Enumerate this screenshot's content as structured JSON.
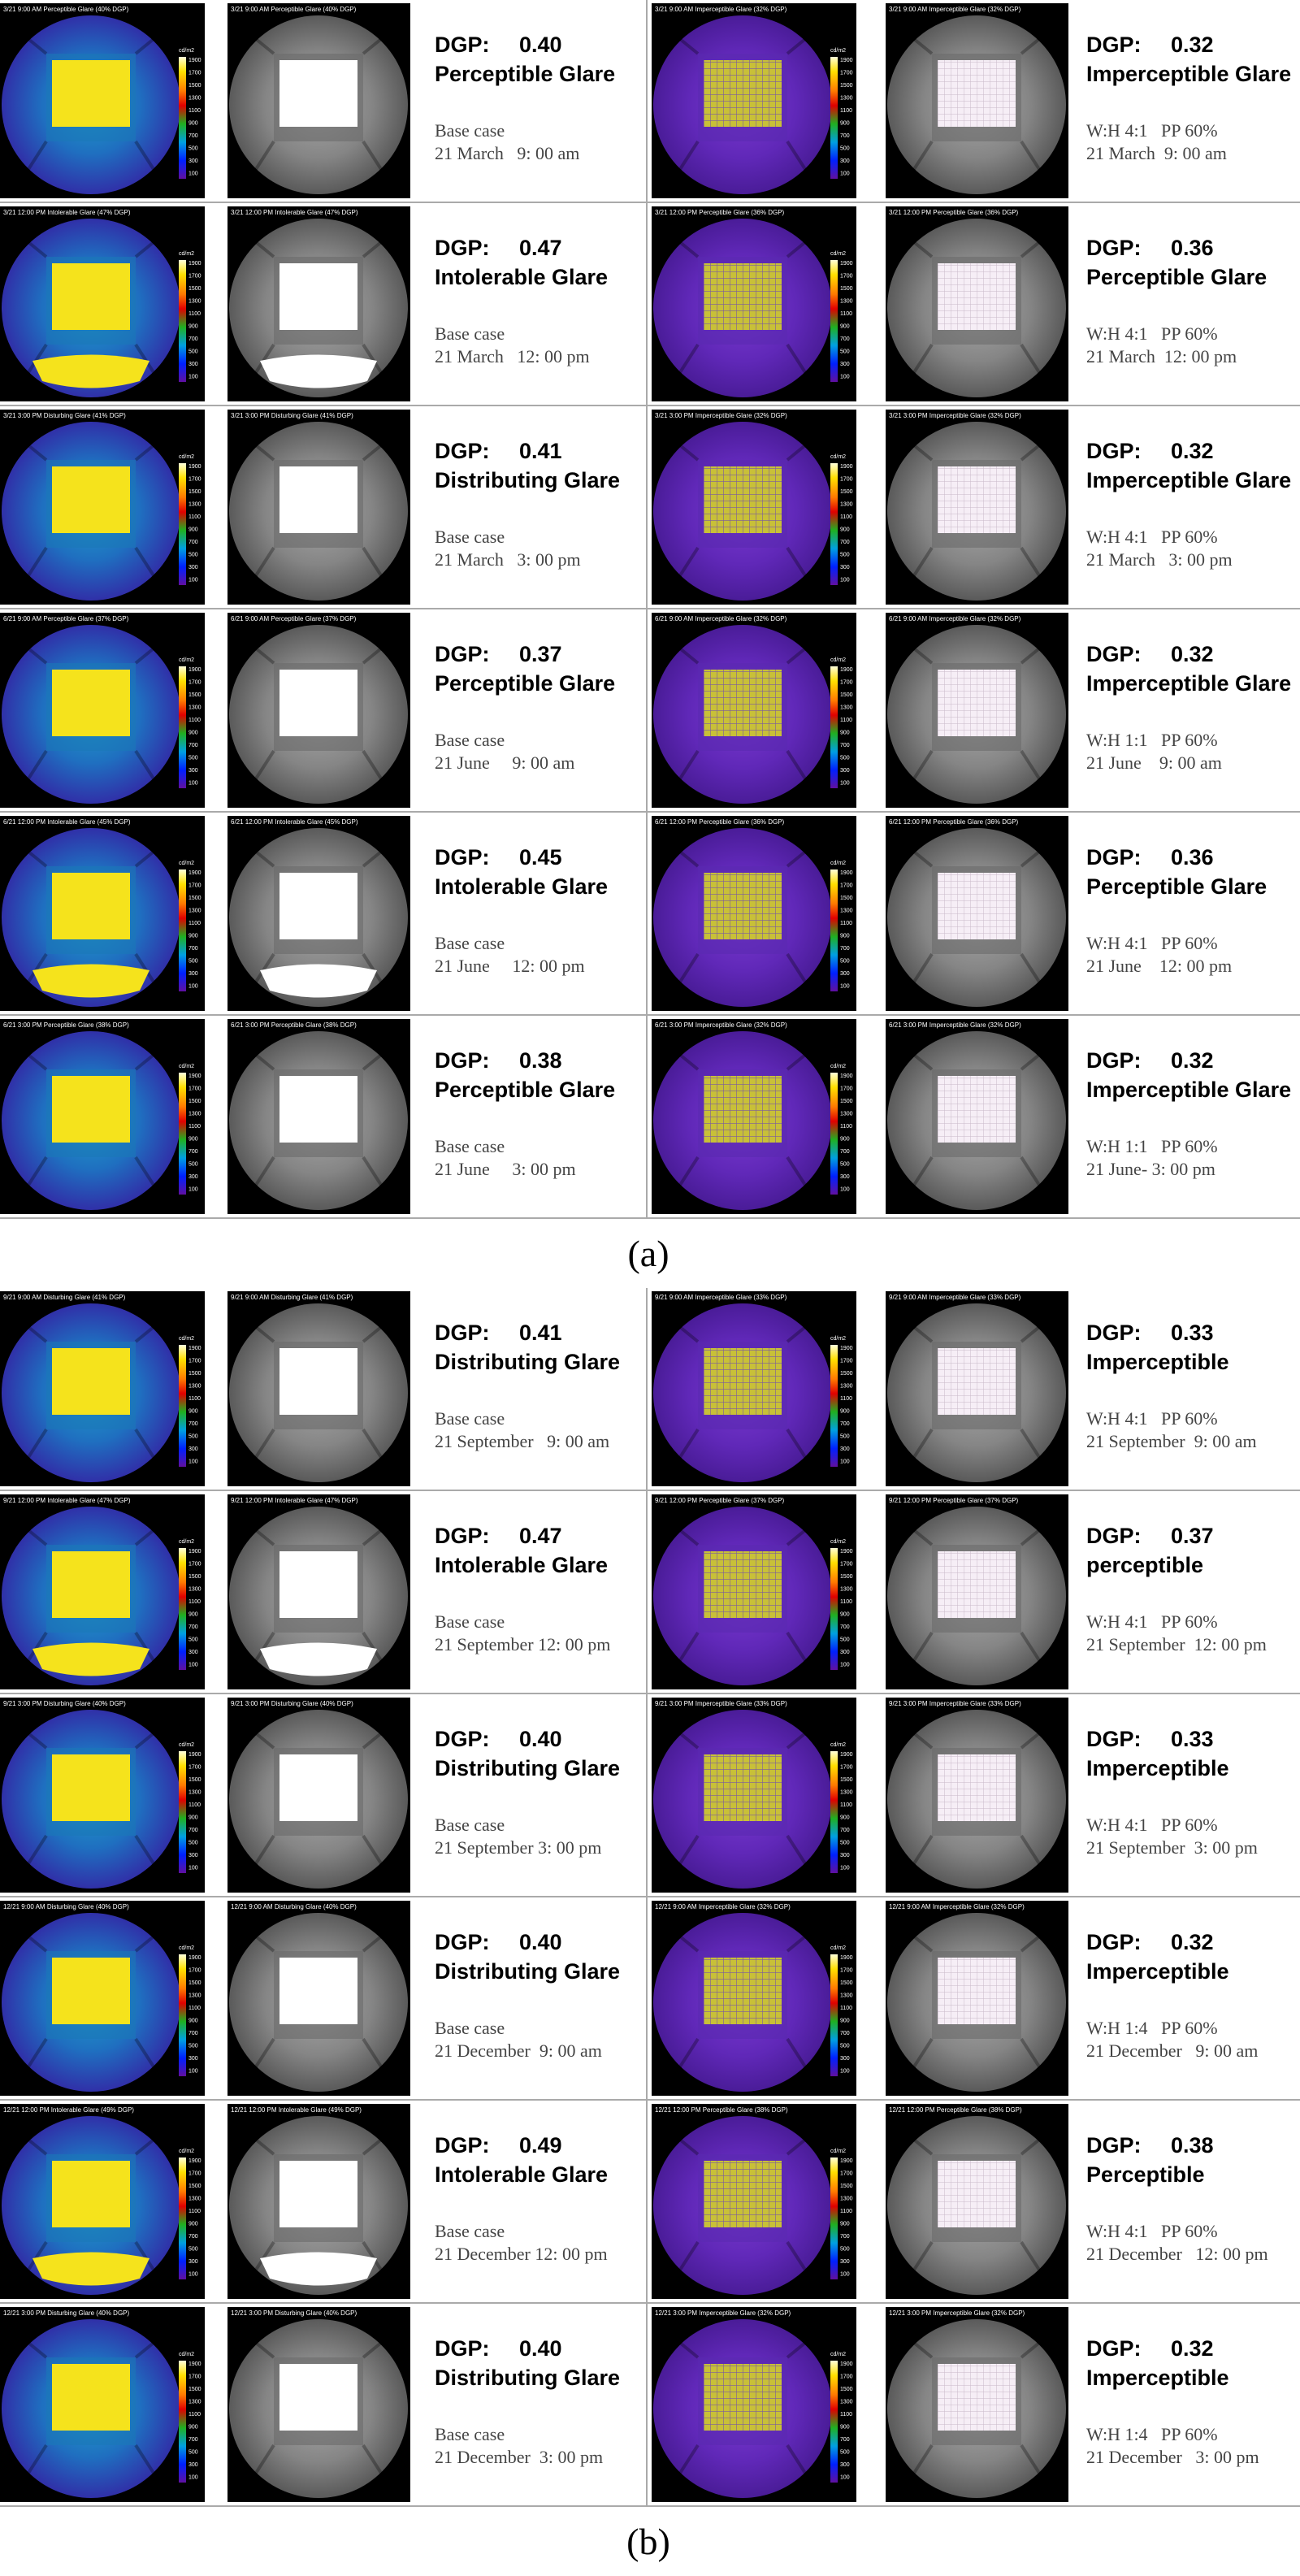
{
  "dgp_label": "DGP:",
  "legend": {
    "unit": "cd/m2",
    "labels": [
      "1900",
      "1700",
      "1500",
      "1300",
      "1100",
      "900",
      "700",
      "500",
      "300",
      "100"
    ]
  },
  "panels": [
    {
      "label": "(a)",
      "rows": [
        {
          "left": {
            "header": "3/21 9:00 AM Perceptible Glare (40% DGP)",
            "dgp": "0.40",
            "glare": "Perceptible Glare",
            "case": "Base case",
            "date": "21 March   9: 00 am"
          },
          "right": {
            "header": "3/21 9:00 AM Imperceptible Glare (32% DGP)",
            "dgp": "0.32",
            "glare": "Imperceptible Glare",
            "case": "W:H 4:1   PP 60%",
            "date": "21 March  9: 00 am"
          }
        },
        {
          "left": {
            "header": "3/21 12:00 PM Intolerable Glare (47% DGP)",
            "dgp": "0.47",
            "glare": "Intolerable Glare",
            "case": "Base case",
            "date": "21 March   12: 00 pm"
          },
          "right": {
            "header": "3/21 12:00 PM Perceptible Glare (36% DGP)",
            "dgp": "0.36",
            "glare": "Perceptible Glare",
            "case": "W:H 4:1   PP 60%",
            "date": "21 March  12: 00 pm"
          }
        },
        {
          "left": {
            "header": "3/21 3:00 PM Disturbing Glare (41% DGP)",
            "dgp": "0.41",
            "glare": "Distributing Glare",
            "case": "Base case",
            "date": "21 March   3: 00 pm"
          },
          "right": {
            "header": "3/21 3:00 PM Imperceptible Glare (32% DGP)",
            "dgp": "0.32",
            "glare": "Imperceptible Glare",
            "case": "W:H 4:1   PP 60%",
            "date": "21 March   3: 00 pm"
          }
        },
        {
          "left": {
            "header": "6/21 9:00 AM Perceptible Glare (37% DGP)",
            "dgp": "0.37",
            "glare": "Perceptible Glare",
            "case": "Base case",
            "date": "21 June     9: 00 am"
          },
          "right": {
            "header": "6/21 9:00 AM Imperceptible Glare (32% DGP)",
            "dgp": "0.32",
            "glare": "Imperceptible Glare",
            "case": "W:H 1:1   PP 60%",
            "date": "21 June    9: 00 am"
          }
        },
        {
          "left": {
            "header": "6/21 12:00 PM Intolerable Glare (45% DGP)",
            "dgp": "0.45",
            "glare": "Intolerable Glare",
            "case": "Base case",
            "date": "21 June     12: 00 pm"
          },
          "right": {
            "header": "6/21 12:00 PM Perceptible Glare (36% DGP)",
            "dgp": "0.36",
            "glare": "Perceptible Glare",
            "case": "W:H 4:1   PP 60%",
            "date": "21 June    12: 00 pm"
          }
        },
        {
          "left": {
            "header": "6/21 3:00 PM Perceptible Glare (38% DGP)",
            "dgp": "0.38",
            "glare": "Perceptible Glare",
            "case": "Base case",
            "date": "21 June     3: 00 pm"
          },
          "right": {
            "header": "6/21 3:00 PM Imperceptible Glare (32% DGP)",
            "dgp": "0.32",
            "glare": "Imperceptible Glare",
            "case": "W:H 1:1   PP 60%",
            "date": "21 June- 3: 00 pm"
          }
        }
      ]
    },
    {
      "label": "(b)",
      "rows": [
        {
          "left": {
            "header": "9/21 9:00 AM Disturbing Glare (41% DGP)",
            "dgp": "0.41",
            "glare": "Distributing Glare",
            "case": "Base case",
            "date": "21 September   9: 00 am"
          },
          "right": {
            "header": "9/21 9:00 AM Imperceptible Glare (33% DGP)",
            "dgp": "0.33",
            "glare": "Imperceptible",
            "case": "W:H 4:1   PP 60%",
            "date": "21 September  9: 00 am"
          }
        },
        {
          "left": {
            "header": "9/21 12:00 PM Intolerable Glare (47% DGP)",
            "dgp": "0.47",
            "glare": "Intolerable Glare",
            "case": "Base case",
            "date": "21 September 12: 00 pm"
          },
          "right": {
            "header": "9/21 12:00 PM Perceptible Glare (37% DGP)",
            "dgp": "0.37",
            "glare": "perceptible",
            "case": "W:H 4:1   PP 60%",
            "date": "21 September  12: 00 pm"
          }
        },
        {
          "left": {
            "header": "9/21 3:00 PM Disturbing Glare (40% DGP)",
            "dgp": "0.40",
            "glare": "Distributing Glare",
            "case": "Base case",
            "date": "21 September 3: 00 pm"
          },
          "right": {
            "header": "9/21 3:00 PM Imperceptible Glare (33% DGP)",
            "dgp": "0.33",
            "glare": "Imperceptible",
            "case": "W:H 4:1   PP 60%",
            "date": "21 September  3: 00 pm"
          }
        },
        {
          "left": {
            "header": "12/21 9:00 AM Disturbing Glare (40% DGP)",
            "dgp": "0.40",
            "glare": "Distributing Glare",
            "case": "Base case",
            "date": "21 December  9: 00 am"
          },
          "right": {
            "header": "12/21 9:00 AM Imperceptible Glare (32% DGP)",
            "dgp": "0.32",
            "glare": "Imperceptible",
            "case": "W:H 1:4   PP 60%",
            "date": "21 December   9: 00 am"
          }
        },
        {
          "left": {
            "header": "12/21 12:00 PM Intolerable Glare (49% DGP)",
            "dgp": "0.49",
            "glare": "Intolerable Glare",
            "case": "Base case",
            "date": "21 December 12: 00 pm"
          },
          "right": {
            "header": "12/21 12:00 PM Perceptible Glare (38% DGP)",
            "dgp": "0.38",
            "glare": "Perceptible",
            "case": "W:H 4:1   PP 60%",
            "date": "21 December   12: 00 pm"
          }
        },
        {
          "left": {
            "header": "12/21 3:00 PM Disturbing Glare (40% DGP)",
            "dgp": "0.40",
            "glare": "Distributing Glare",
            "case": "Base case",
            "date": "21 December  3: 00 pm"
          },
          "right": {
            "header": "12/21 3:00 PM Imperceptible Glare (32% DGP)",
            "dgp": "0.32",
            "glare": "Imperceptible",
            "case": "W:H 1:4   PP 60%",
            "date": "21 December   3: 00 pm"
          }
        }
      ]
    }
  ]
}
